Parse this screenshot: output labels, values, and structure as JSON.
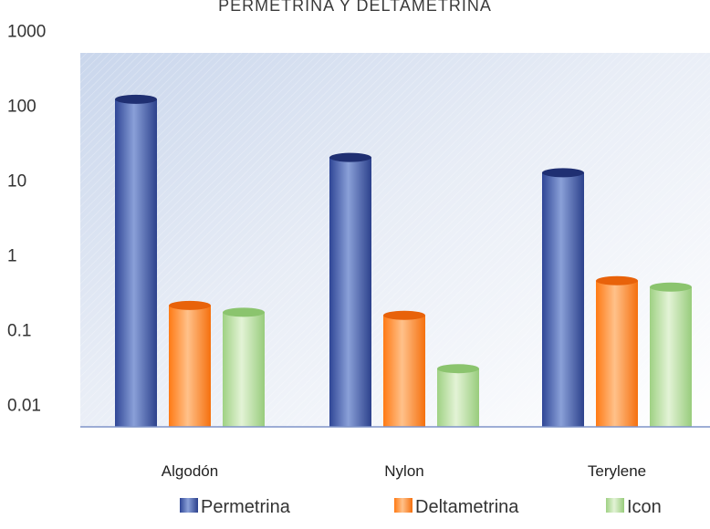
{
  "chart_data": {
    "type": "bar",
    "title": "PERMETRINA Y DELTAMETRINA",
    "y_scale": "log",
    "ylim": [
      0.005,
      1000
    ],
    "y_ticks": [
      "0.01",
      "0.1",
      "1",
      "10",
      "100",
      "1000"
    ],
    "grid": false,
    "legend_position": "bottom",
    "categories": [
      "Algodón",
      "Nylon",
      "Terylene"
    ],
    "series": [
      {
        "name": "Permetrina",
        "values": [
          120,
          20,
          12.5
        ],
        "color": "#3d56a8",
        "edge": "#1f2f72"
      },
      {
        "name": "Deltametrina",
        "values": [
          0.21,
          0.155,
          0.45
        ],
        "color": "#ff8a2a",
        "edge": "#e8620a"
      },
      {
        "name": "Icon",
        "values": [
          0.17,
          0.03,
          0.37
        ],
        "color": "#aedb94",
        "edge": "#8bc46e"
      }
    ]
  }
}
